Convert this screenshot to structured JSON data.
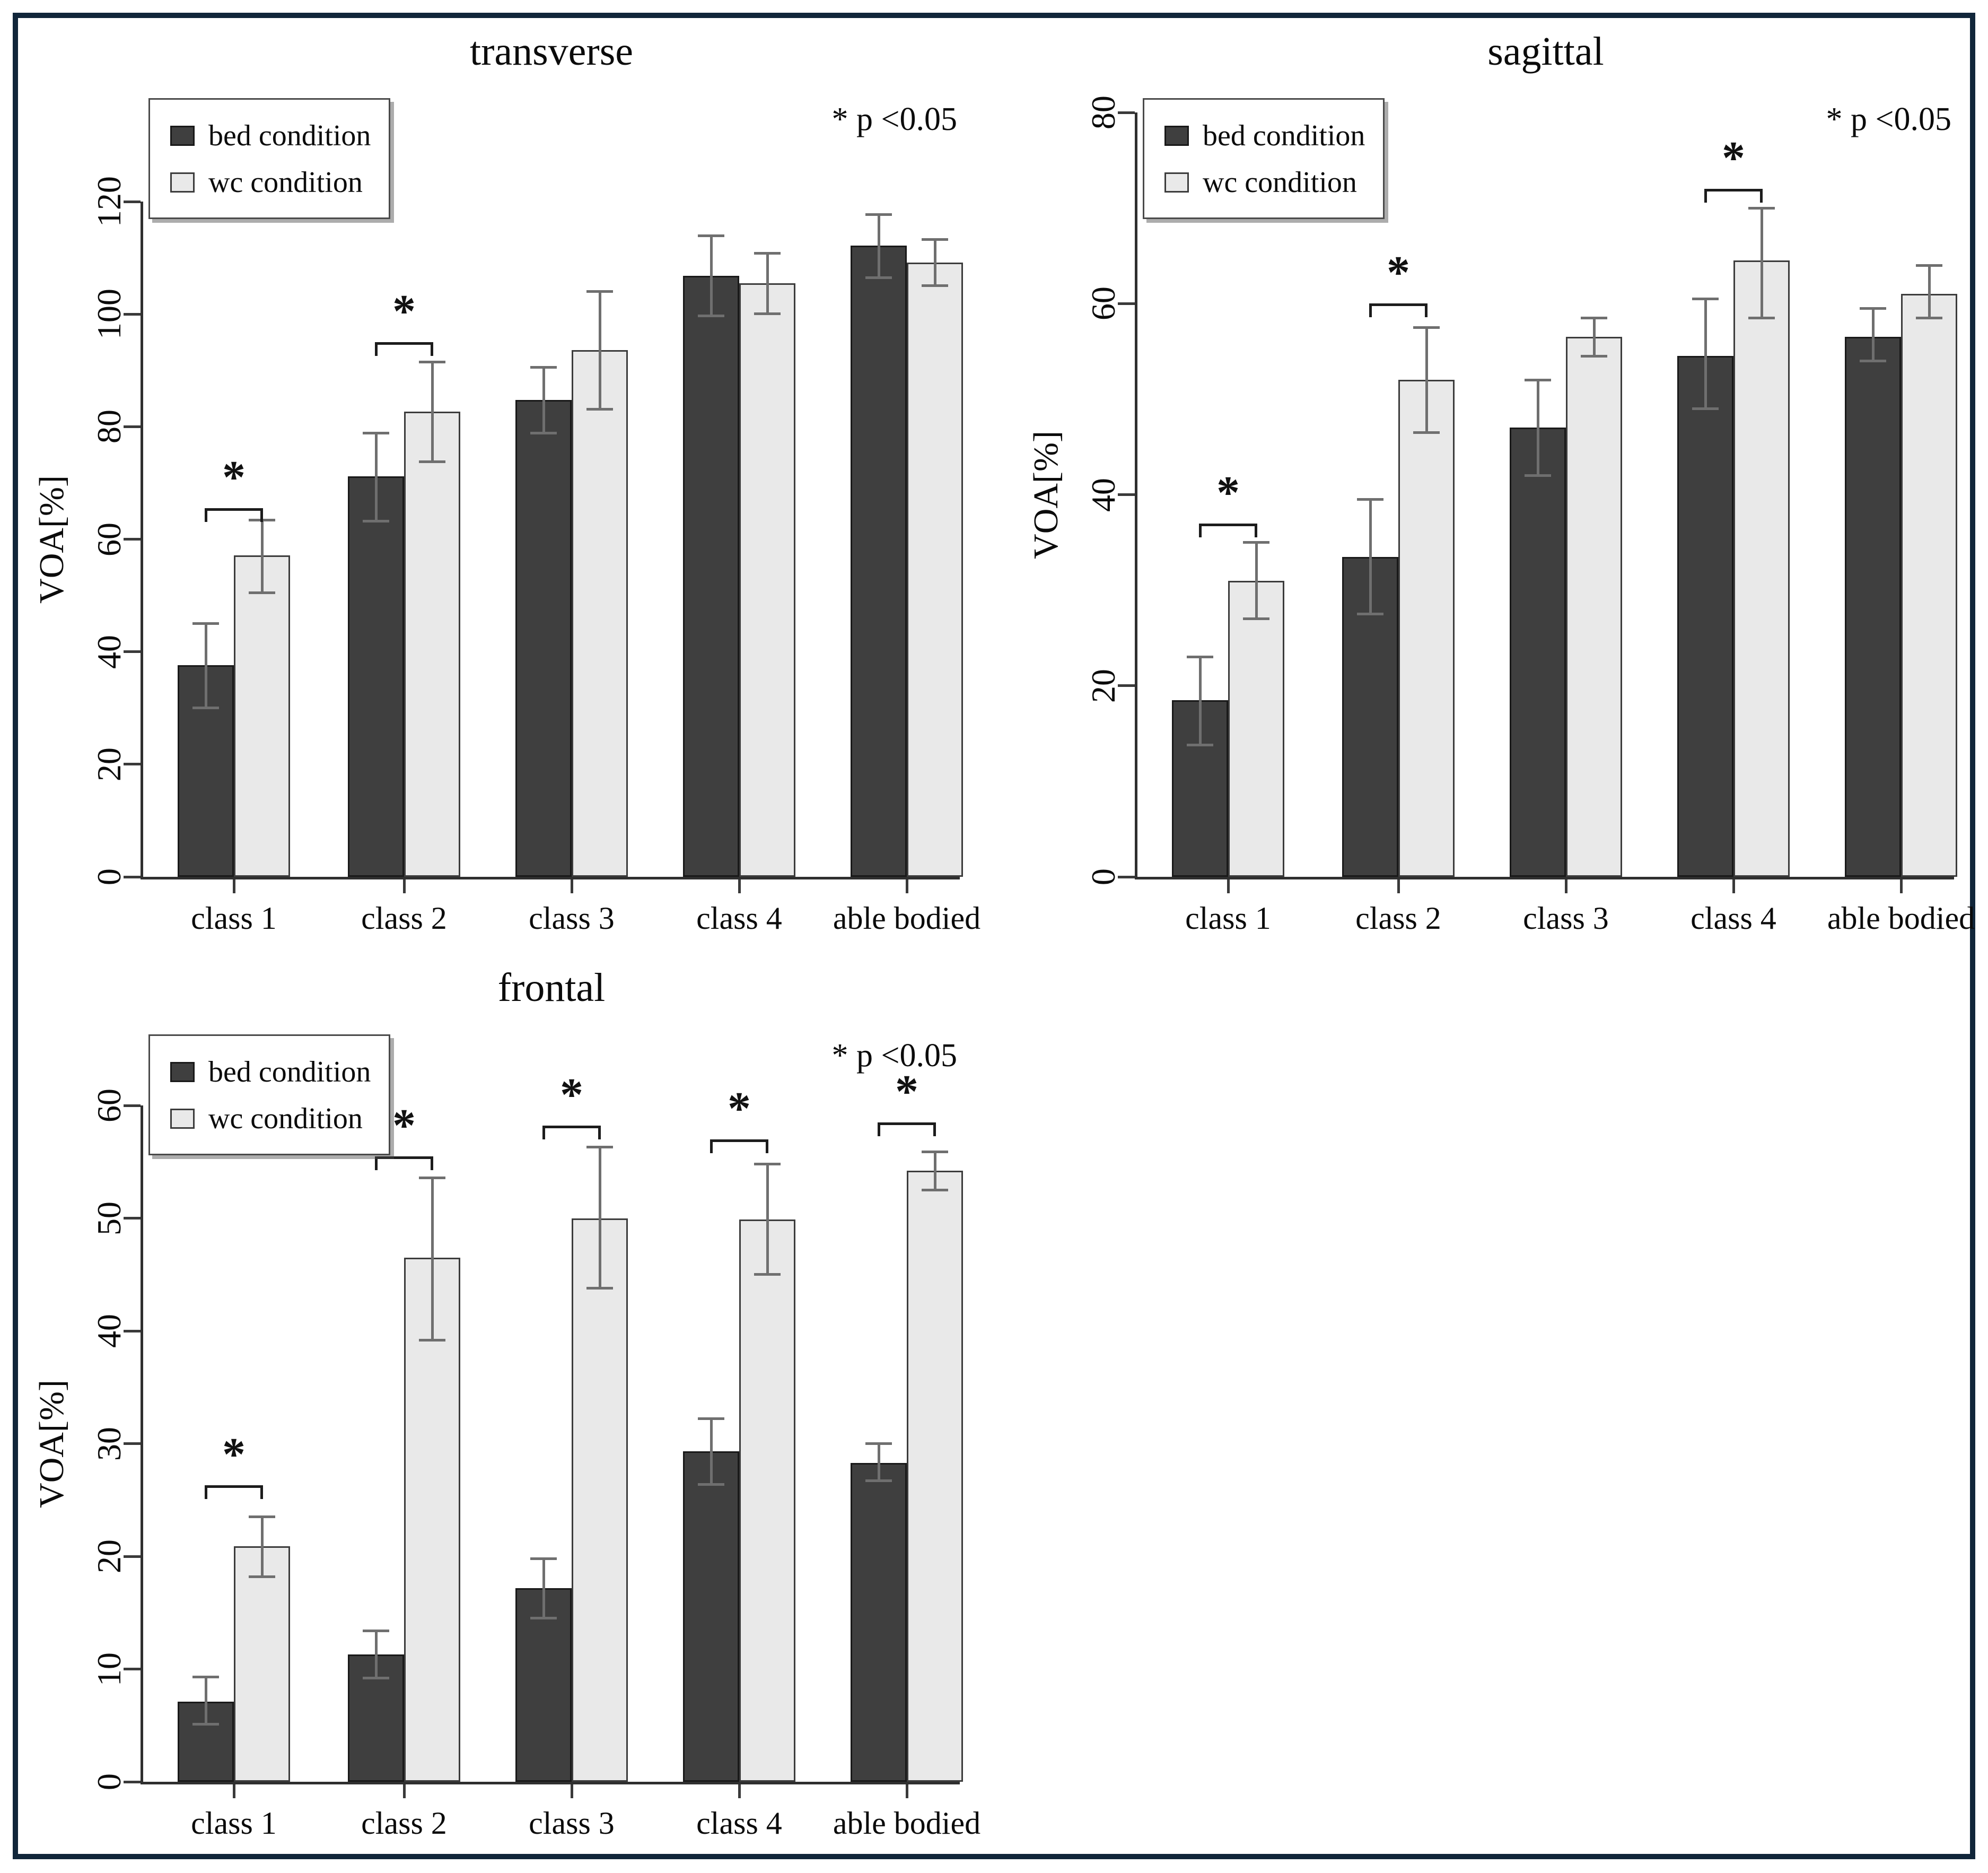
{
  "figure": {
    "frame_color": "#11263a",
    "background": "#ffffff"
  },
  "colors": {
    "bed_fill": "#3f3f3f",
    "bed_border": "#191919",
    "wc_fill": "#e9e9e9",
    "wc_border": "#3c3c3c",
    "error_bar": "#6f6f6f",
    "axis": "#2f2f2f",
    "text": "#0b0b0b"
  },
  "chart_data": [
    {
      "type": "bar",
      "title": "transverse",
      "ylabel": "VOA[%]",
      "xlabel": "",
      "ylim": [
        0,
        120
      ],
      "yticks": [
        0,
        20,
        40,
        60,
        80,
        100,
        120
      ],
      "grid": false,
      "legend_position": "top-left",
      "legend": [
        "bed condition",
        "wc condition"
      ],
      "p_label": "* p <0.05",
      "categories": [
        "class 1",
        "class 2",
        "class 3",
        "class 4",
        "able bodied"
      ],
      "series": [
        {
          "name": "bed condition",
          "values": [
            37.6,
            71.2,
            84.7,
            106.8,
            112.2
          ],
          "err_low": [
            30.0,
            63.2,
            78.9,
            99.7,
            106.5
          ],
          "err_high": [
            45.0,
            78.9,
            90.5,
            113.9,
            117.7
          ]
        },
        {
          "name": "wc condition",
          "values": [
            57.1,
            82.7,
            93.6,
            105.5,
            109.2
          ],
          "err_low": [
            50.5,
            73.8,
            83.1,
            100.1,
            105.1
          ],
          "err_high": [
            63.4,
            91.5,
            104.0,
            110.8,
            113.3
          ]
        }
      ],
      "significance": [
        {
          "group_index": 0,
          "bracket_height": 65.5,
          "label": "*"
        },
        {
          "group_index": 1,
          "bracket_height": 95.0,
          "label": "*"
        }
      ]
    },
    {
      "type": "bar",
      "title": "sagittal",
      "ylabel": "VOA[%]",
      "xlabel": "",
      "ylim": [
        0,
        80
      ],
      "yticks": [
        0,
        20,
        40,
        60,
        80
      ],
      "grid": false,
      "legend_position": "top-left",
      "legend": [
        "bed condition",
        "wc condition"
      ],
      "p_label": "* p <0.05",
      "categories": [
        "class 1",
        "class 2",
        "class 3",
        "class 4",
        "able bodied"
      ],
      "series": [
        {
          "name": "bed condition",
          "values": [
            18.5,
            33.5,
            47.0,
            54.5,
            56.5
          ],
          "err_low": [
            13.8,
            27.5,
            42.0,
            49.0,
            54.0
          ],
          "err_high": [
            23.0,
            39.5,
            52.0,
            60.5,
            59.5
          ]
        },
        {
          "name": "wc condition",
          "values": [
            31.0,
            52.0,
            56.5,
            64.5,
            61.0
          ],
          "err_low": [
            27.0,
            46.5,
            54.5,
            58.5,
            58.5
          ],
          "err_high": [
            35.0,
            57.5,
            58.5,
            70.0,
            64.0
          ]
        }
      ],
      "significance": [
        {
          "group_index": 0,
          "bracket_height": 37.0,
          "label": "*"
        },
        {
          "group_index": 1,
          "bracket_height": 60.0,
          "label": "*"
        },
        {
          "group_index": 3,
          "bracket_height": 72.0,
          "label": "*"
        }
      ]
    },
    {
      "type": "bar",
      "title": "frontal",
      "ylabel": "VOA[%]",
      "xlabel": "",
      "ylim": [
        0,
        60
      ],
      "yticks": [
        0,
        10,
        20,
        30,
        40,
        50,
        60
      ],
      "grid": false,
      "legend_position": "top-left",
      "legend": [
        "bed condition",
        "wc condition"
      ],
      "p_label": "* p <0.05",
      "categories": [
        "class 1",
        "class 2",
        "class 3",
        "class 4",
        "able bodied"
      ],
      "series": [
        {
          "name": "bed condition",
          "values": [
            7.1,
            11.3,
            17.2,
            29.3,
            28.3
          ],
          "err_low": [
            5.1,
            9.2,
            14.5,
            26.4,
            26.7
          ],
          "err_high": [
            9.3,
            13.4,
            19.8,
            32.2,
            30.0
          ]
        },
        {
          "name": "wc condition",
          "values": [
            20.9,
            46.5,
            50.0,
            49.9,
            54.2
          ],
          "err_low": [
            18.2,
            39.2,
            43.8,
            45.0,
            52.5
          ],
          "err_high": [
            23.5,
            53.6,
            56.3,
            54.8,
            55.9
          ]
        }
      ],
      "significance": [
        {
          "group_index": 0,
          "bracket_height": 26.3,
          "label": "*"
        },
        {
          "group_index": 1,
          "bracket_height": 55.5,
          "label": "*"
        },
        {
          "group_index": 2,
          "bracket_height": 58.2,
          "label": "*"
        },
        {
          "group_index": 3,
          "bracket_height": 57.0,
          "label": "*"
        },
        {
          "group_index": 4,
          "bracket_height": 58.5,
          "label": "*"
        }
      ]
    }
  ]
}
